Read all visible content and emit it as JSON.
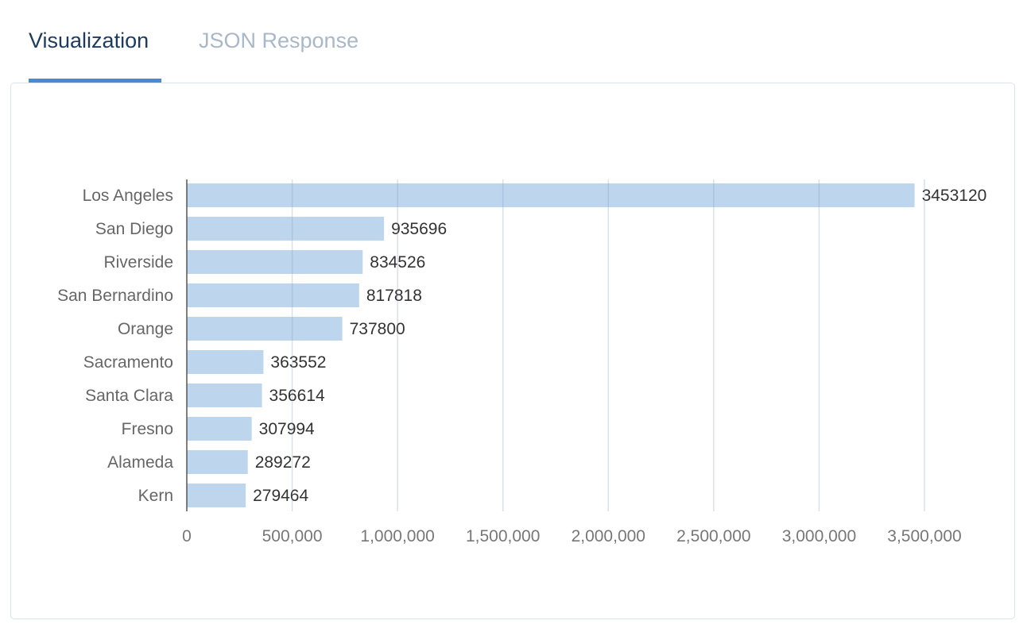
{
  "tabs": [
    {
      "label": "Visualization",
      "active": true
    },
    {
      "label": "JSON Response",
      "active": false
    }
  ],
  "colors": {
    "bar": "#bdd6ee",
    "active_tab": "#1d3b5e",
    "inactive_tab": "#a9b8c9",
    "accent": "#4a8ad0"
  },
  "chart_data": {
    "type": "bar",
    "orientation": "horizontal",
    "categories": [
      "Los Angeles",
      "San Diego",
      "Riverside",
      "San Bernardino",
      "Orange",
      "Sacramento",
      "Santa Clara",
      "Fresno",
      "Alameda",
      "Kern"
    ],
    "values": [
      3453120,
      935696,
      834526,
      817818,
      737800,
      363552,
      356614,
      307994,
      289272,
      279464
    ],
    "data_labels": [
      "3453120",
      "935696",
      "834526",
      "817818",
      "737800",
      "363552",
      "356614",
      "307994",
      "289272",
      "279464"
    ],
    "xlim": [
      0,
      3500000
    ],
    "xticks": [
      0,
      500000,
      1000000,
      1500000,
      2000000,
      2500000,
      3000000,
      3500000
    ],
    "xtick_labels": [
      "0",
      "500,000",
      "1,000,000",
      "1,500,000",
      "2,000,000",
      "2,500,000",
      "3,000,000",
      "3,500,000"
    ],
    "grid": "vertical"
  }
}
